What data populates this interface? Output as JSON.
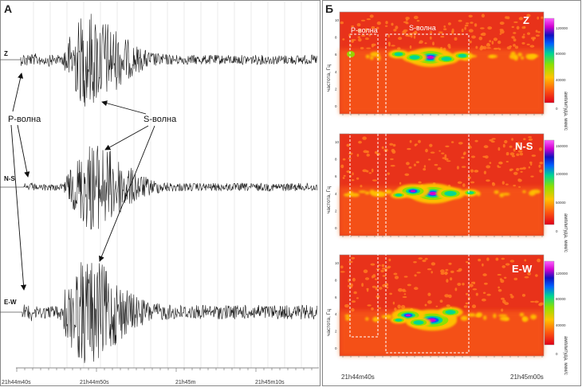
{
  "panel_a": {
    "label": "А",
    "traces": [
      {
        "label": "Z"
      },
      {
        "label": "N-S"
      },
      {
        "label": "E-W"
      }
    ],
    "p_wave_label": "P-волна",
    "s_wave_label": "S-волна",
    "time_ticks": [
      "21h44m40s",
      "21h44m50s",
      "21h45m",
      "21h45m10s"
    ]
  },
  "panel_b": {
    "label": "Б",
    "p_box_label": "P-волна",
    "s_box_label": "S-волна",
    "y_axis_label": "частота, Гц",
    "colorbar_label": "амплитуда, мкм/с",
    "y_ticks": [
      "10",
      "8",
      "6",
      "4",
      "2",
      "0"
    ],
    "spectrograms": [
      {
        "label": "Z",
        "colorbar_ticks": [
          "120000",
          "80000",
          "40000",
          "0"
        ]
      },
      {
        "label": "N-S",
        "colorbar_ticks": [
          "150000",
          "100000",
          "50000",
          "0"
        ]
      },
      {
        "label": "E-W",
        "colorbar_ticks": [
          "120000",
          "80000",
          "40000",
          "0"
        ]
      }
    ],
    "time_ticks": [
      "21h44m40s",
      "21h45m00s"
    ]
  },
  "colors": {
    "trace": "#1a1a1a",
    "spectrogram_background": "#e8321a",
    "colormap": [
      "#e0001a",
      "#ff5a10",
      "#ffc400",
      "#8ee000",
      "#00d890",
      "#0060ff",
      "#1010c0",
      "#d000d0",
      "#ff60ff"
    ]
  }
}
